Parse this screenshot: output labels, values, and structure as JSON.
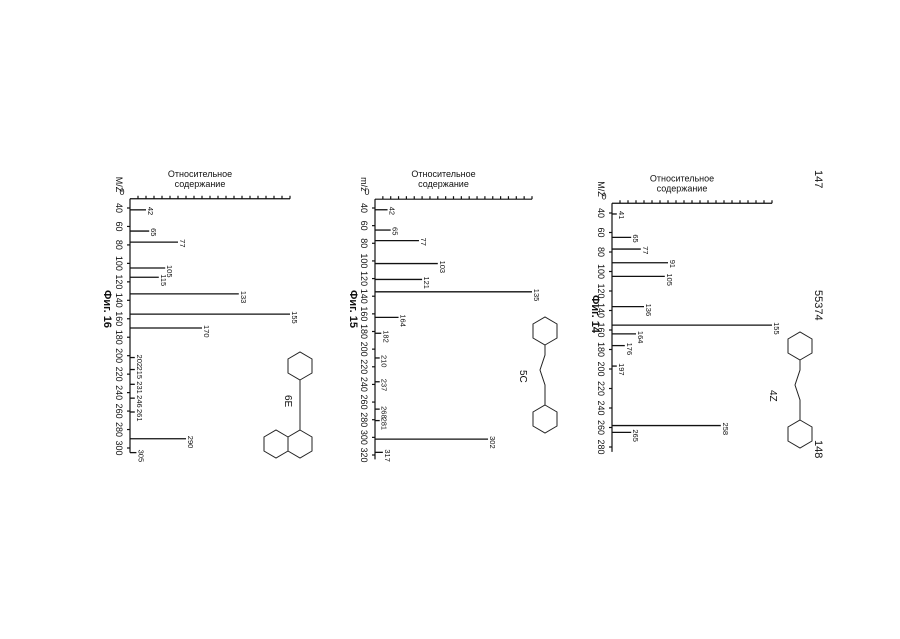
{
  "page_numbers": [
    "147",
    "55374",
    "148"
  ],
  "chart_data": [
    {
      "type": "spectrum",
      "title": "Фиг. 16",
      "y_label": [
        "Относительное",
        "содержание"
      ],
      "x_label": "M/Z",
      "structure_label": "6E",
      "xlim": [
        30,
        305
      ],
      "xticks": [
        40,
        60,
        80,
        100,
        120,
        140,
        160,
        180,
        200,
        220,
        240,
        260,
        280,
        300
      ],
      "ylim": [
        0,
        100
      ],
      "yticks": [
        0
      ],
      "x": [
        42,
        65,
        77,
        105,
        115,
        133,
        155,
        170,
        202,
        215,
        231,
        246,
        261,
        290,
        305
      ],
      "values": [
        10,
        12,
        30,
        22,
        18,
        68,
        100,
        45,
        3,
        3,
        3,
        3,
        3,
        35,
        4
      ]
    },
    {
      "type": "spectrum",
      "title": "Фиг. 15",
      "y_label": [
        "Относительное",
        "содержание"
      ],
      "x_label": "m/z",
      "structure_label": "5C",
      "xlim": [
        30,
        325
      ],
      "xticks": [
        40,
        60,
        80,
        100,
        120,
        140,
        160,
        180,
        200,
        220,
        240,
        260,
        280,
        300,
        320
      ],
      "ylim": [
        0,
        100
      ],
      "yticks": [
        0
      ],
      "x": [
        42,
        65,
        77,
        103,
        121,
        135,
        164,
        182,
        210,
        237,
        268,
        281,
        302,
        317
      ],
      "values": [
        8,
        10,
        28,
        40,
        30,
        100,
        15,
        4,
        3,
        3,
        3,
        3,
        72,
        5
      ]
    },
    {
      "type": "spectrum",
      "title": "Фиг. 14",
      "y_label": [
        "Относительное",
        "содержание"
      ],
      "x_label": "M/Z",
      "structure_label": "4Z",
      "xlim": [
        30,
        285
      ],
      "xticks": [
        40,
        60,
        80,
        100,
        120,
        140,
        160,
        180,
        200,
        220,
        240,
        260,
        280
      ],
      "ylim": [
        0,
        100
      ],
      "yticks": [
        0
      ],
      "x": [
        41,
        65,
        77,
        91,
        105,
        136,
        155,
        164,
        176,
        197,
        258,
        265
      ],
      "values": [
        3,
        12,
        18,
        35,
        33,
        20,
        100,
        15,
        8,
        3,
        68,
        12
      ]
    }
  ]
}
